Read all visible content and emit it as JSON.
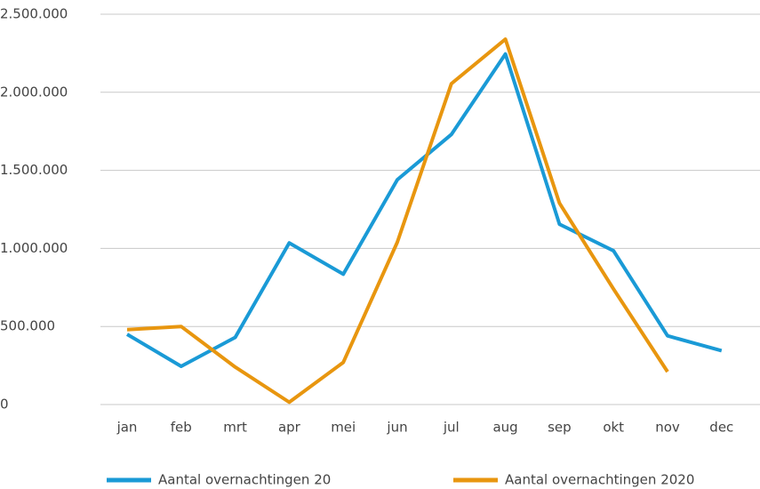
{
  "chart_data": {
    "type": "line",
    "categories": [
      "jan",
      "feb",
      "mrt",
      "apr",
      "mei",
      "jun",
      "jul",
      "aug",
      "sep",
      "okt",
      "nov",
      "dec"
    ],
    "series": [
      {
        "name": "Aantal overnachtingen 20",
        "color": "#1a9ad6",
        "values": [
          450000,
          245000,
          430000,
          1035000,
          835000,
          1440000,
          1730000,
          2245000,
          1155000,
          985000,
          440000,
          345000
        ]
      },
      {
        "name": "Aantal overnachtingen 2020",
        "color": "#e8960f",
        "values": [
          480000,
          500000,
          240000,
          15000,
          270000,
          1040000,
          2055000,
          2340000,
          1290000,
          740000,
          210000,
          null
        ]
      }
    ],
    "ylim": [
      0,
      2500000
    ],
    "yticks": [
      {
        "value": 0,
        "label": "0"
      },
      {
        "value": 500000,
        "label": "500.000"
      },
      {
        "value": 1000000,
        "label": "1.000.000"
      },
      {
        "value": 1500000,
        "label": "1.500.000"
      },
      {
        "value": 2000000,
        "label": "2.000.000"
      },
      {
        "value": 2500000,
        "label": "2.500.000"
      }
    ],
    "grid": true,
    "legend": "bottom"
  }
}
